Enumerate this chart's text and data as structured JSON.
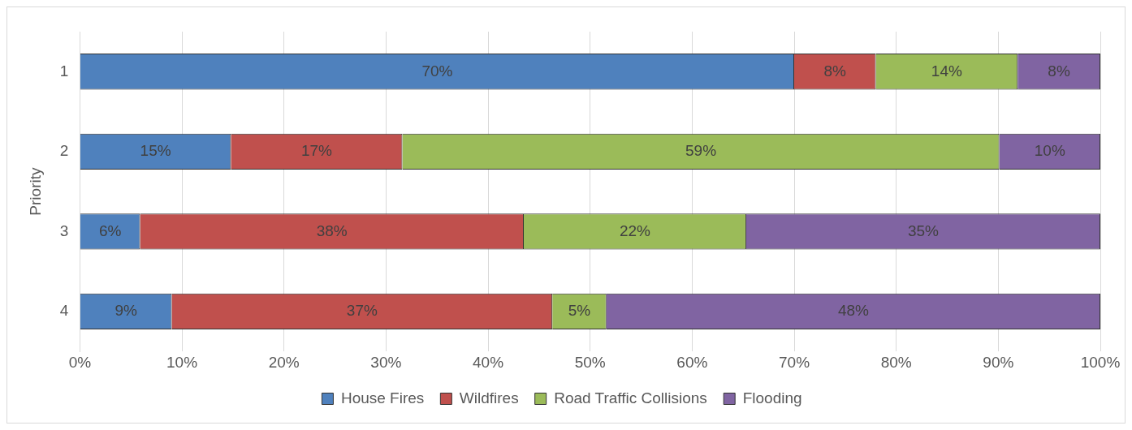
{
  "chart_data": {
    "type": "bar",
    "orientation": "horizontal",
    "stacked": true,
    "ylabel": "Priority",
    "categories": [
      "1",
      "2",
      "3",
      "4"
    ],
    "series": [
      {
        "name": "House Fires",
        "color": "#4f81bd",
        "values": [
          70,
          14.8,
          5.9,
          9.0
        ],
        "value_labels": [
          "70%",
          "15%",
          "6%",
          "9%"
        ]
      },
      {
        "name": "Wildfires",
        "color": "#c0504d",
        "values": [
          8,
          16.8,
          37.6,
          37.3
        ],
        "value_labels": [
          "8%",
          "17%",
          "38%",
          "37%"
        ]
      },
      {
        "name": "Road Traffic Collisions",
        "color": "#9bbb59",
        "values": [
          13.9,
          58.5,
          21.8,
          5.3
        ],
        "value_labels": [
          "14%",
          "59%",
          "22%",
          "5%"
        ]
      },
      {
        "name": "Flooding",
        "color": "#8064a2",
        "values": [
          8.1,
          9.9,
          34.7,
          48.4
        ],
        "value_labels": [
          "8%",
          "10%",
          "35%",
          "48%"
        ]
      }
    ],
    "xlim": [
      0,
      100
    ],
    "xticks": [
      {
        "value": 0,
        "label": "0%"
      },
      {
        "value": 10,
        "label": "10%"
      },
      {
        "value": 20,
        "label": "20%"
      },
      {
        "value": 30,
        "label": "30%"
      },
      {
        "value": 40,
        "label": "40%"
      },
      {
        "value": 50,
        "label": "50%"
      },
      {
        "value": 60,
        "label": "60%"
      },
      {
        "value": 70,
        "label": "70%"
      },
      {
        "value": 80,
        "label": "80%"
      },
      {
        "value": 90,
        "label": "90%"
      },
      {
        "value": 100,
        "label": "100%"
      }
    ],
    "grid": "x",
    "legend": "bottom"
  }
}
